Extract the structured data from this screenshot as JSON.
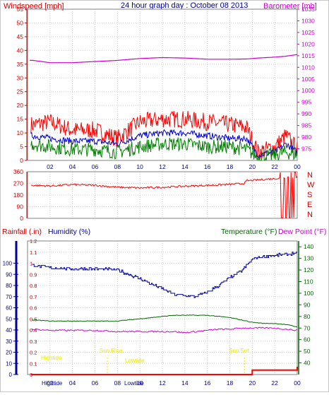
{
  "header": {
    "title": "24 hour graph day : October 08 2013",
    "left_label": "Windspeed [mph]",
    "right_label": "Barometer [mb]"
  },
  "direction_labels": [
    "N",
    "W",
    "S",
    "E",
    "N"
  ],
  "bottom_header": {
    "rain": "Rainfall (.in)",
    "humidity": "Humidity (%)",
    "temperature": "Temperature (°F)",
    "dewpoint": "Dew Point (°F)"
  },
  "tide_labels": {
    "hightide": "Hightide",
    "lowtide": "Lowtide",
    "sunrise": "Sun Rise",
    "sunset": "Sun Set",
    "bottom_hightide": "Hightide",
    "bottom_lowtide": "Lowtide"
  },
  "colors": {
    "wind": "#ff0000",
    "gust": "#0000cc",
    "avg": "#008000",
    "baro": "#cc00cc",
    "axis_red": "#cc0000",
    "axis_blue": "#000099",
    "axis_green": "#006600",
    "tide_yellow": "#e8e800"
  },
  "chart_data": [
    {
      "type": "line",
      "panel": "wind_barometer",
      "title": "24 hour graph day : October 08 2013",
      "ylabel": "Windspeed [mph]",
      "y2label": "Barometer [mb]",
      "x_ticks": [
        "02",
        "04",
        "06",
        "08",
        "10",
        "12",
        "14",
        "16",
        "18",
        "20",
        "22",
        "00"
      ],
      "ylim": [
        0,
        55
      ],
      "y_ticks": [
        0,
        5,
        10,
        15,
        20,
        25,
        30,
        35,
        40,
        45,
        50,
        55
      ],
      "y2lim": [
        970,
        1035
      ],
      "y2_ticks": [
        975,
        980,
        985,
        990,
        995,
        1000,
        1005,
        1010,
        1015,
        1020,
        1025,
        1030,
        1035
      ],
      "x": [
        0.5,
        2,
        4,
        6,
        8,
        10,
        12,
        14,
        16,
        18,
        19.5,
        20.5,
        22,
        23,
        24
      ],
      "series": [
        {
          "values": [
            13,
            14,
            11,
            11,
            8,
            14,
            15,
            15,
            14,
            13,
            12,
            3,
            5,
            9,
            4
          ]
        },
        {
          "values": [
            9,
            8,
            7,
            7,
            6,
            9,
            10,
            10,
            9,
            8,
            8,
            2,
            3,
            6,
            3
          ]
        },
        {
          "values": [
            6,
            5,
            4,
            4,
            3,
            5,
            6,
            6,
            5,
            5,
            4,
            1,
            2,
            3,
            2
          ]
        },
        {
          "axis": "y2",
          "values": [
            1013,
            1012,
            1012,
            1012.5,
            1013,
            1013.8,
            1014.2,
            1014,
            1013.5,
            1013.5,
            1013.6,
            1014,
            1014.4,
            1014.8,
            1015.5
          ]
        }
      ]
    },
    {
      "type": "line",
      "panel": "wind_direction",
      "ylim": [
        0,
        360
      ],
      "y_ticks": [
        0,
        90,
        180,
        270,
        360
      ],
      "x": [
        0.5,
        2,
        4,
        6,
        8,
        10,
        12,
        14,
        16,
        18,
        19.3,
        19.5,
        21,
        22.5,
        24
      ],
      "series": [
        {
          "values": [
            255,
            250,
            260,
            255,
            240,
            235,
            240,
            248,
            255,
            262,
            270,
            290,
            300,
            310,
            320
          ]
        }
      ]
    },
    {
      "type": "line",
      "panel": "rain_humidity_temperature",
      "x_ticks": [
        "02",
        "04",
        "06",
        "08",
        "10",
        "12",
        "14",
        "16",
        "18",
        "20",
        "22",
        "00"
      ],
      "ylim": [
        0,
        1.2
      ],
      "y_ticks": [
        0,
        0.1,
        0.2,
        0.3,
        0.4,
        0.5,
        0.6,
        0.7,
        0.8,
        0.9,
        1,
        1.1,
        1.2
      ],
      "y_humidity_ticks": [
        0,
        10,
        20,
        30,
        40,
        50,
        60,
        70,
        80,
        90,
        100
      ],
      "y2lim": [
        30,
        145
      ],
      "y2_ticks": [
        40,
        50,
        60,
        70,
        80,
        90,
        100,
        110,
        120,
        130,
        140
      ],
      "x": [
        0.5,
        2,
        4,
        6,
        8,
        10,
        12,
        13,
        14,
        15,
        16,
        17,
        18,
        19,
        19.5,
        20,
        21,
        22,
        23,
        24
      ],
      "series": [
        {
          "values": [
            98,
            96,
            95,
            95,
            94,
            86,
            77,
            72,
            71,
            70,
            74,
            80,
            87,
            93,
            98,
            104,
            106,
            107,
            108,
            109
          ]
        },
        {
          "axis": "y2",
          "values": [
            77,
            76,
            76,
            76,
            76,
            78,
            80,
            81,
            81,
            81,
            81,
            80,
            79,
            77,
            76,
            75,
            74,
            74,
            73,
            71
          ]
        },
        {
          "axis": "y2",
          "values": [
            69,
            68,
            68,
            68,
            67,
            67,
            67,
            67,
            66,
            67,
            68,
            69,
            69,
            70,
            70,
            70,
            70,
            70,
            69,
            68
          ]
        },
        {
          "values": [
            0,
            0,
            0,
            0,
            0,
            0,
            0,
            0,
            0,
            0,
            0,
            0,
            0,
            0,
            0,
            0.04,
            0.04,
            0.04,
            0.04,
            0.07
          ]
        }
      ]
    }
  ]
}
